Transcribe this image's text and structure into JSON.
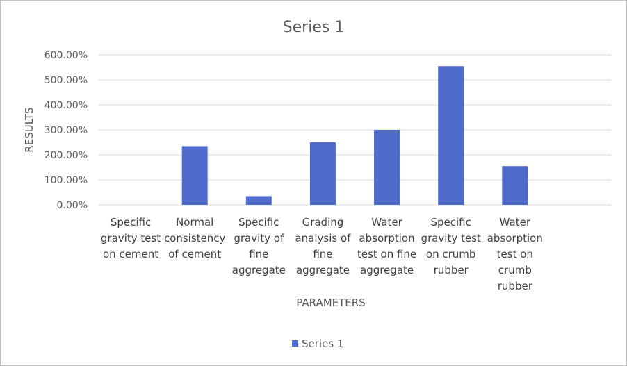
{
  "chart_data": {
    "type": "bar",
    "title": "Series 1",
    "xlabel": "PARAMETERS",
    "ylabel": "RESULTS",
    "categories": [
      "Specific gravity test on cement",
      "Normal consistency of cement",
      "Specific gravity of fine aggregate",
      "Grading analysis of fine aggregate",
      "Water absorption test on fine aggregate",
      "Specific gravity test on crumb rubber",
      "Water absorption test on crumb rubber"
    ],
    "category_lines": [
      [
        "Specific",
        "gravity test",
        "on cement"
      ],
      [
        "Normal",
        "consistency",
        "of cement"
      ],
      [
        "Specific",
        "gravity of",
        "fine",
        "aggregate"
      ],
      [
        "Grading",
        "analysis of",
        "fine",
        "aggregate"
      ],
      [
        "Water",
        "absorption",
        "test on fine",
        "aggregate"
      ],
      [
        "Specific",
        "gravity test",
        "on crumb",
        "rubber"
      ],
      [
        "Water",
        "absorption",
        "test on",
        "crumb",
        "rubber"
      ]
    ],
    "series": [
      {
        "name": "Series 1",
        "color": "#4f6bcc",
        "values": [
          0.0,
          2.35,
          0.35,
          2.5,
          3.0,
          5.55,
          1.55
        ]
      }
    ],
    "ylim": [
      0,
      6
    ],
    "yticks": [
      0,
      1,
      2,
      3,
      4,
      5,
      6
    ],
    "ytick_labels": [
      "0.00%",
      "100.00%",
      "200.00%",
      "300.00%",
      "400.00%",
      "500.00%",
      "600.00%"
    ],
    "grid": true,
    "legend_position": "bottom",
    "gridline_color": "#d9d9d9"
  }
}
